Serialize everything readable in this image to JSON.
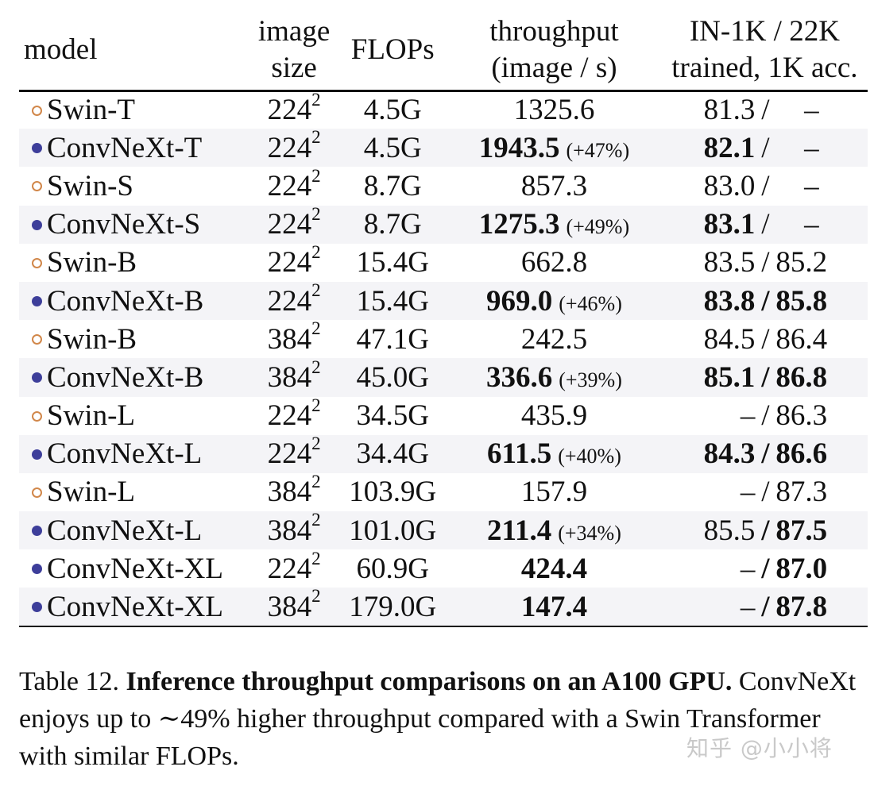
{
  "table": {
    "headers": {
      "model": "model",
      "size_l1": "image",
      "size_l2": "size",
      "flops": "FLOPs",
      "tp_l1": "throughput",
      "tp_l2": "(image / s)",
      "acc_l1": "IN-1K / 22K",
      "acc_l2": "trained, 1K acc."
    },
    "separator": "/",
    "rows": [
      {
        "model": "Swin-T",
        "marker": "open",
        "size": "224",
        "exp": "2",
        "flops": "4.5G",
        "tp": "1325.6",
        "tp_bold": false,
        "gain": "",
        "in1k": "81.3",
        "in1k_bold": false,
        "in22k": "–",
        "in22k_bold": false
      },
      {
        "model": "ConvNeXt-T",
        "marker": "filled",
        "size": "224",
        "exp": "2",
        "flops": "4.5G",
        "tp": "1943.5",
        "tp_bold": true,
        "gain": "(+47%)",
        "in1k": "82.1",
        "in1k_bold": true,
        "in22k": "–",
        "in22k_bold": false
      },
      {
        "model": "Swin-S",
        "marker": "open",
        "size": "224",
        "exp": "2",
        "flops": "8.7G",
        "tp": "857.3",
        "tp_bold": false,
        "gain": "",
        "in1k": "83.0",
        "in1k_bold": false,
        "in22k": "–",
        "in22k_bold": false
      },
      {
        "model": "ConvNeXt-S",
        "marker": "filled",
        "size": "224",
        "exp": "2",
        "flops": "8.7G",
        "tp": "1275.3",
        "tp_bold": true,
        "gain": "(+49%)",
        "in1k": "83.1",
        "in1k_bold": true,
        "in22k": "–",
        "in22k_bold": false
      },
      {
        "model": "Swin-B",
        "marker": "open",
        "size": "224",
        "exp": "2",
        "flops": "15.4G",
        "tp": "662.8",
        "tp_bold": false,
        "gain": "",
        "in1k": "83.5",
        "in1k_bold": false,
        "in22k": "85.2",
        "in22k_bold": false
      },
      {
        "model": "ConvNeXt-B",
        "marker": "filled",
        "size": "224",
        "exp": "2",
        "flops": "15.4G",
        "tp": "969.0",
        "tp_bold": true,
        "gain": "(+46%)",
        "in1k": "83.8",
        "in1k_bold": true,
        "in22k": "85.8",
        "in22k_bold": true
      },
      {
        "model": "Swin-B",
        "marker": "open",
        "size": "384",
        "exp": "2",
        "flops": "47.1G",
        "tp": "242.5",
        "tp_bold": false,
        "gain": "",
        "in1k": "84.5",
        "in1k_bold": false,
        "in22k": "86.4",
        "in22k_bold": false
      },
      {
        "model": "ConvNeXt-B",
        "marker": "filled",
        "size": "384",
        "exp": "2",
        "flops": "45.0G",
        "tp": "336.6",
        "tp_bold": true,
        "gain": "(+39%)",
        "in1k": "85.1",
        "in1k_bold": true,
        "in22k": "86.8",
        "in22k_bold": true
      },
      {
        "model": "Swin-L",
        "marker": "open",
        "size": "224",
        "exp": "2",
        "flops": "34.5G",
        "tp": "435.9",
        "tp_bold": false,
        "gain": "",
        "in1k": "–",
        "in1k_bold": false,
        "in22k": "86.3",
        "in22k_bold": false
      },
      {
        "model": "ConvNeXt-L",
        "marker": "filled",
        "size": "224",
        "exp": "2",
        "flops": "34.4G",
        "tp": "611.5",
        "tp_bold": true,
        "gain": "(+40%)",
        "in1k": "84.3",
        "in1k_bold": true,
        "in22k": "86.6",
        "in22k_bold": true
      },
      {
        "model": "Swin-L",
        "marker": "open",
        "size": "384",
        "exp": "2",
        "flops": "103.9G",
        "tp": "157.9",
        "tp_bold": false,
        "gain": "",
        "in1k": "–",
        "in1k_bold": false,
        "in22k": "87.3",
        "in22k_bold": false
      },
      {
        "model": "ConvNeXt-L",
        "marker": "filled",
        "size": "384",
        "exp": "2",
        "flops": "101.0G",
        "tp": "211.4",
        "tp_bold": true,
        "gain": "(+34%)",
        "in1k": "85.5",
        "in1k_bold": false,
        "in22k": "87.5",
        "in22k_bold": true
      },
      {
        "model": "ConvNeXt-XL",
        "marker": "filled",
        "size": "224",
        "exp": "2",
        "flops": "60.9G",
        "tp": "424.4",
        "tp_bold": true,
        "gain": "",
        "in1k": "–",
        "in1k_bold": false,
        "in22k": "87.0",
        "in22k_bold": true
      },
      {
        "model": "ConvNeXt-XL",
        "marker": "filled",
        "size": "384",
        "exp": "2",
        "flops": "179.0G",
        "tp": "147.4",
        "tp_bold": true,
        "gain": "",
        "in1k": "–",
        "in1k_bold": false,
        "in22k": "87.8",
        "in22k_bold": true
      }
    ]
  },
  "caption": {
    "label": "Table 12. ",
    "bold": "Inference throughput comparisons on an A100 GPU.",
    "body": " ConvNeXt enjoys up to ∼49% higher throughput compared with a Swin Transformer with similar FLOPs."
  },
  "watermark": "知乎 @小小将",
  "colors": {
    "open_marker": "#d1874a",
    "filled_marker": "#3d3e9a",
    "alt_row_bg": "#f4f4f7"
  }
}
